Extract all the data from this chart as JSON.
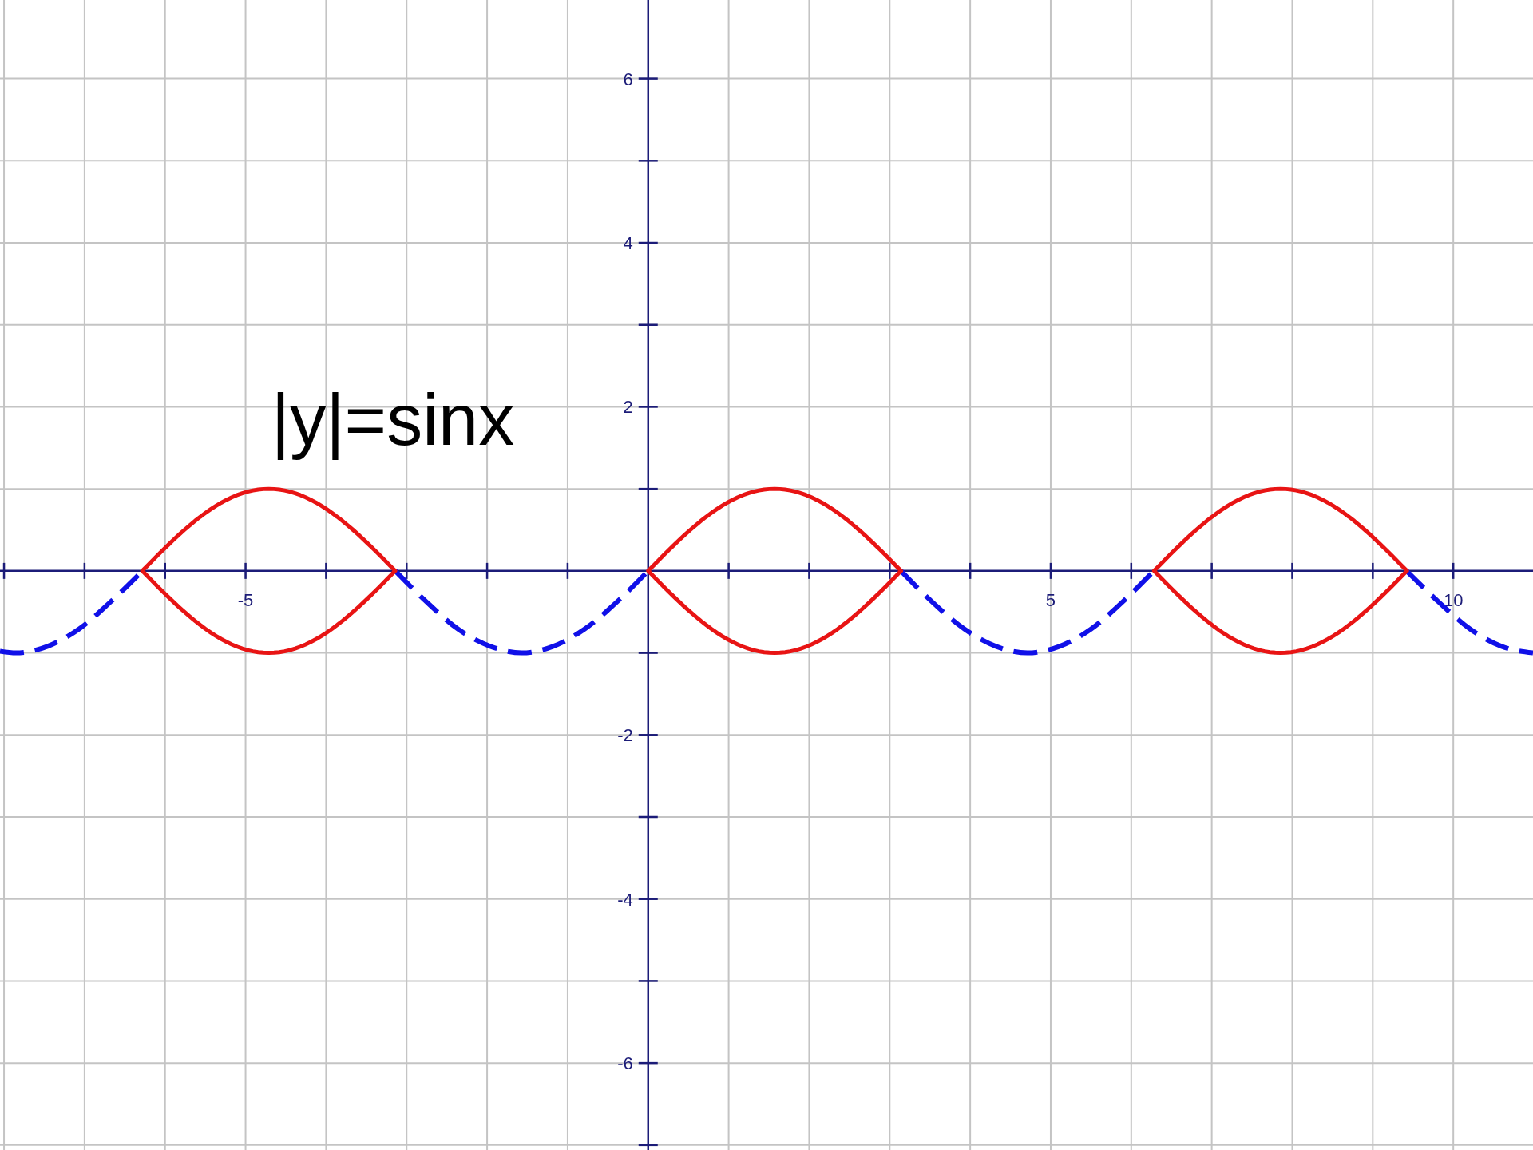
{
  "chart_data": {
    "type": "line",
    "xlim": [
      -8.05,
      10.99
    ],
    "ylim": [
      -7.06,
      6.96
    ],
    "xticks": [
      {
        "value": -8,
        "label": null
      },
      {
        "value": -7,
        "label": null
      },
      {
        "value": -6,
        "label": null
      },
      -5,
      {
        "value": -4,
        "label": null
      },
      {
        "value": -3,
        "label": null
      },
      {
        "value": -2,
        "label": null
      },
      {
        "value": -1,
        "label": null
      },
      {
        "value": 1,
        "label": null
      },
      {
        "value": 2,
        "label": null
      },
      {
        "value": 3,
        "label": null
      },
      {
        "value": 4,
        "label": null
      },
      5,
      {
        "value": 6,
        "label": null
      },
      {
        "value": 7,
        "label": null
      },
      {
        "value": 8,
        "label": null
      },
      {
        "value": 9,
        "label": null
      },
      10
    ],
    "yticks": [
      {
        "value": -7,
        "label": null
      },
      -6,
      {
        "value": -5,
        "label": null
      },
      -4,
      {
        "value": -3,
        "label": null
      },
      -2,
      {
        "value": -1,
        "label": null
      },
      {
        "value": 1,
        "label": null
      },
      2,
      {
        "value": 3,
        "label": null
      },
      4,
      {
        "value": 5,
        "label": null
      },
      6
    ],
    "grid": true,
    "annotations": [
      "|y|=sinx"
    ],
    "series": [
      {
        "color": "#1010e8",
        "line_style": "dashed",
        "x": [
          -8.05,
          -7.85,
          -7.46,
          -7.07,
          -6.68,
          -6.28,
          -4.71,
          -3.14,
          -2.75,
          -2.36,
          -1.96,
          -1.57,
          -1.18,
          -0.79,
          -0.39,
          0,
          1.57,
          3.14,
          3.53,
          3.93,
          4.32,
          4.71,
          5.11,
          5.5,
          5.89,
          6.28,
          7.85,
          9.42,
          9.82,
          10.21,
          10.6,
          10.99
        ],
        "values": [
          -0.98,
          -1,
          -0.92,
          -0.71,
          -0.38,
          0,
          null,
          0,
          -0.38,
          -0.71,
          -0.92,
          -1,
          -0.92,
          -0.71,
          -0.38,
          0,
          null,
          0,
          -0.38,
          -0.71,
          -0.92,
          -1,
          -0.92,
          -0.71,
          -0.38,
          0,
          null,
          0,
          -0.38,
          -0.71,
          -0.92,
          -1
        ]
      }
    ]
  }
}
